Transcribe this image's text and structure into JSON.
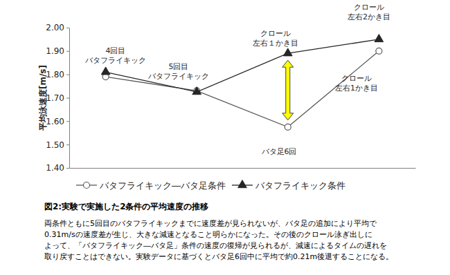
{
  "chart_data": {
    "type": "line",
    "title": "図2:実験で実施した2条件の平均速度の推移",
    "ylabel": "平均泳速度[m/s]",
    "categories": [
      null,
      null,
      null,
      null
    ],
    "series": [
      {
        "name": "バタフライキック―バタ足条件",
        "color": "#595959",
        "marker": "open-circle",
        "values": [
          1.79,
          1.73,
          1.575,
          1.9
        ]
      },
      {
        "name": "バタフライキック条件",
        "color": "#262626",
        "marker": "triangle",
        "values": [
          1.81,
          1.725,
          1.89,
          1.95
        ]
      }
    ],
    "ylim": [
      1.4,
      2.0
    ],
    "yticks": [
      {
        "value": 1.4,
        "label": "1.40"
      },
      {
        "value": 1.5,
        "label": "1.50"
      },
      {
        "value": 1.6,
        "label": "1.60"
      },
      {
        "value": 1.7,
        "label": "1.70"
      },
      {
        "value": 1.8,
        "label": "1.80"
      },
      {
        "value": 1.9,
        "label": "1.90"
      },
      {
        "value": 2.0,
        "label": "2.00"
      }
    ],
    "grid": false,
    "legend": "bottom",
    "annotations": [
      [
        "4回目",
        "バタフライキック"
      ],
      [
        "5回目",
        "バタフライキック"
      ],
      [
        "クロール",
        "左右１かき目"
      ],
      [
        "クロール",
        "左右2かき目"
      ],
      [
        "バタ足6回"
      ],
      [
        "クロール",
        "左右1かき目"
      ]
    ],
    "caption": [
      "両条件ともに5回目のバタフライキックまでに速度差が見られないが、バタ足の追加により平均で",
      "0.31m/sの速度差が生じ、大きな減速となること明らかになった。その後のクロール泳ぎ出しに",
      "よって、「バタフライキック―バタ足」条件の速度の復帰が見られるが、減速によるタイムの遅れを",
      "取り戻すことはできない。実験データに基づくとバタ足6回中に平均で約0.21m後退することになる。"
    ]
  }
}
